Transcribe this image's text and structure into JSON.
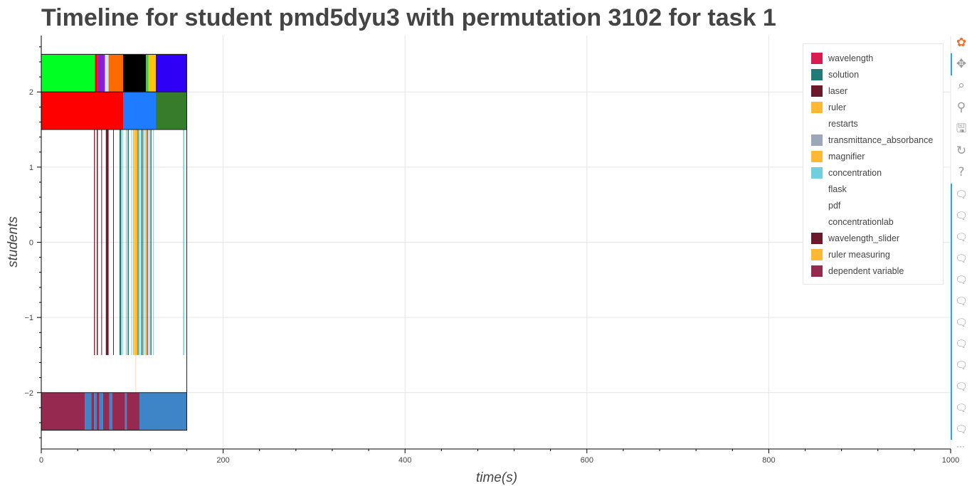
{
  "page": {
    "title": "Timeline for student pmd5dyu3 with permutation 3102 for task 1"
  },
  "chart_data": {
    "type": "timeline",
    "xlabel": "time(s)",
    "ylabel": "students",
    "xlim": [
      0,
      1000
    ],
    "ylim": [
      -2.75,
      2.75
    ],
    "xticks": [
      0,
      200,
      400,
      600,
      800,
      1000
    ],
    "yticks": [
      -2,
      -1,
      0,
      1,
      2
    ],
    "grid": true,
    "legend_position": "top-right",
    "frame": {
      "x0": 0,
      "x1": 160,
      "y0": -2.5,
      "y1": 2.5
    },
    "rows": [
      {
        "name": "row_2",
        "y0": 2.0,
        "y1": 2.5,
        "segments": [
          {
            "x0": 0,
            "x1": 59,
            "color": "#00ff22"
          },
          {
            "x0": 59,
            "x1": 62,
            "color": "#ff0000"
          },
          {
            "x0": 62,
            "x1": 70,
            "color": "#8a1fd1"
          },
          {
            "x0": 70,
            "x1": 74,
            "color": "#c9e7ff"
          },
          {
            "x0": 74,
            "x1": 90,
            "color": "#ff6a00"
          },
          {
            "x0": 90,
            "x1": 115,
            "color": "#000000"
          },
          {
            "x0": 115,
            "x1": 118,
            "color": "#3bd13b"
          },
          {
            "x0": 118,
            "x1": 126,
            "color": "#ffc20e"
          },
          {
            "x0": 126,
            "x1": 160,
            "color": "#2e00f5"
          }
        ]
      },
      {
        "name": "row_1_5",
        "y0": 1.5,
        "y1": 2.0,
        "segments": [
          {
            "x0": 0,
            "x1": 90,
            "color": "#ff0000"
          },
          {
            "x0": 90,
            "x1": 126,
            "color": "#1f7bff"
          },
          {
            "x0": 126,
            "x1": 160,
            "color": "#367c2b"
          }
        ]
      },
      {
        "name": "row_-2",
        "y0": -2.5,
        "y1": -2.0,
        "segments": [
          {
            "x0": 0,
            "x1": 48,
            "color": "#962950"
          },
          {
            "x0": 48,
            "x1": 55,
            "color": "#3d85c6"
          },
          {
            "x0": 55,
            "x1": 58,
            "color": "#962950"
          },
          {
            "x0": 58,
            "x1": 61,
            "color": "#3d85c6"
          },
          {
            "x0": 61,
            "x1": 64,
            "color": "#962950"
          },
          {
            "x0": 64,
            "x1": 68,
            "color": "#3d85c6"
          },
          {
            "x0": 68,
            "x1": 75,
            "color": "#962950"
          },
          {
            "x0": 75,
            "x1": 78,
            "color": "#3d85c6"
          },
          {
            "x0": 78,
            "x1": 92,
            "color": "#962950"
          },
          {
            "x0": 92,
            "x1": 94,
            "color": "#3d85c6"
          },
          {
            "x0": 94,
            "x1": 108,
            "color": "#962950"
          },
          {
            "x0": 108,
            "x1": 160,
            "color": "#3d85c6"
          }
        ]
      }
    ],
    "events": {
      "y0": -1.5,
      "y1": 1.5,
      "bars": [
        {
          "x": 58,
          "w": 1.0,
          "color": "#6b1a2c"
        },
        {
          "x": 61,
          "w": 1.2,
          "color": "#6b1a2c"
        },
        {
          "x": 66,
          "w": 0.8,
          "color": "#6b1a2c"
        },
        {
          "x": 71,
          "w": 3.0,
          "color": "#6b1a2c"
        },
        {
          "x": 79,
          "w": 0.8,
          "color": "#6b1a2c"
        },
        {
          "x": 86,
          "w": 2.0,
          "color": "#1f7a72"
        },
        {
          "x": 89,
          "w": 0.8,
          "color": "#6fd0dc"
        },
        {
          "x": 93,
          "w": 1.0,
          "color": "#6fd0dc"
        },
        {
          "x": 95,
          "w": 1.2,
          "color": "#1f7a72"
        },
        {
          "x": 99,
          "w": 0.6,
          "color": "#6fd0dc"
        },
        {
          "x": 101,
          "w": 1.5,
          "color": "#ffb833"
        },
        {
          "x": 103,
          "w": 3.0,
          "color": "#ffb833"
        },
        {
          "x": 106,
          "w": 1.0,
          "color": "#1f7a72"
        },
        {
          "x": 108,
          "w": 0.8,
          "color": "#6fd0dc"
        },
        {
          "x": 110,
          "w": 1.5,
          "color": "#1f7a72"
        },
        {
          "x": 112,
          "w": 1.2,
          "color": "#6fd0dc"
        },
        {
          "x": 114,
          "w": 1.0,
          "color": "#ffb833"
        },
        {
          "x": 116,
          "w": 1.0,
          "color": "#6b1a2c"
        },
        {
          "x": 118,
          "w": 1.0,
          "color": "#6fd0dc"
        },
        {
          "x": 120,
          "w": 1.2,
          "color": "#1f7a72"
        },
        {
          "x": 123,
          "w": 0.8,
          "color": "#6fd0dc"
        },
        {
          "x": 156,
          "w": 1.2,
          "color": "#6fd0dc"
        }
      ],
      "faint_line": {
        "x": 104,
        "y0": -1.5,
        "y1": -2.0,
        "color": "#ffd7b8"
      }
    },
    "legend": [
      {
        "label": "wavelength",
        "color": "#d81b50"
      },
      {
        "label": "solution",
        "color": "#1e7b75"
      },
      {
        "label": "laser",
        "color": "#6b1a2c"
      },
      {
        "label": "ruler",
        "color": "#ffb833"
      },
      {
        "label": "restarts",
        "color": "#ffffff"
      },
      {
        "label": "transmittance_absorbance",
        "color": "#9aa8b8"
      },
      {
        "label": "magnifier",
        "color": "#ffb833"
      },
      {
        "label": "concentration",
        "color": "#6fd0dc"
      },
      {
        "label": "flask",
        "color": "#ffffff"
      },
      {
        "label": "pdf",
        "color": "#ffffff"
      },
      {
        "label": "concentrationlab",
        "color": "#ffffff"
      },
      {
        "label": "wavelength_slider",
        "color": "#6b1a2c"
      },
      {
        "label": "ruler measuring",
        "color": "#ffb833"
      },
      {
        "label": "dependent variable",
        "color": "#962950"
      }
    ]
  },
  "toolbar": {
    "tools": [
      {
        "name": "bokeh-logo-icon",
        "glyph": "✿",
        "color": "#e8732e"
      },
      {
        "name": "pan-icon",
        "glyph": "✥"
      },
      {
        "name": "box-zoom-icon",
        "glyph": "⌕"
      },
      {
        "name": "wheel-zoom-icon",
        "glyph": "⚲"
      },
      {
        "name": "save-icon",
        "glyph": "🖫"
      },
      {
        "name": "reset-icon",
        "glyph": "↻"
      },
      {
        "name": "help-icon",
        "glyph": "?"
      }
    ],
    "hover_glyph": "🗨",
    "hover_count": 12,
    "more_label": "···"
  }
}
